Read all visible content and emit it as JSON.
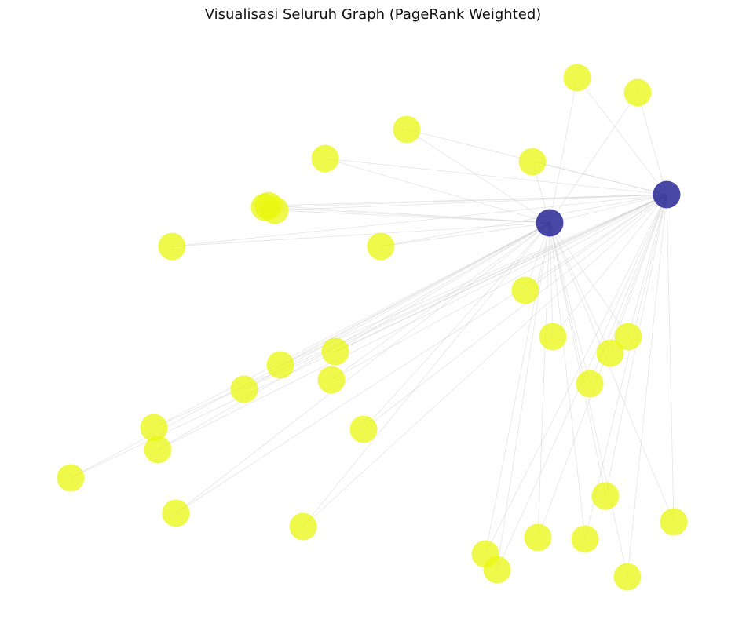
{
  "title": "Visualisasi Seluruh Graph (PageRank Weighted)",
  "colors": {
    "hub_node": "#0d0b88",
    "leaf_node": "#eaf70f",
    "edge": "#cccccc",
    "background": "#ffffff"
  },
  "graph": {
    "nodes": [
      {
        "id": "hubA",
        "role": "hub"
      },
      {
        "id": "hubB",
        "role": "hub"
      },
      {
        "id": "n1",
        "role": "leaf"
      },
      {
        "id": "n2",
        "role": "leaf"
      },
      {
        "id": "n3",
        "role": "leaf"
      },
      {
        "id": "n4",
        "role": "leaf"
      },
      {
        "id": "n5",
        "role": "leaf"
      },
      {
        "id": "n6",
        "role": "leaf"
      },
      {
        "id": "n7",
        "role": "leaf"
      },
      {
        "id": "n8",
        "role": "leaf"
      },
      {
        "id": "n9",
        "role": "leaf"
      },
      {
        "id": "n10",
        "role": "leaf"
      },
      {
        "id": "n11",
        "role": "leaf"
      },
      {
        "id": "n12",
        "role": "leaf"
      },
      {
        "id": "n13",
        "role": "leaf"
      },
      {
        "id": "n14",
        "role": "leaf"
      },
      {
        "id": "n15",
        "role": "leaf"
      },
      {
        "id": "n16",
        "role": "leaf"
      },
      {
        "id": "n17",
        "role": "leaf"
      },
      {
        "id": "n18",
        "role": "leaf"
      },
      {
        "id": "n19",
        "role": "leaf"
      },
      {
        "id": "n20",
        "role": "leaf"
      },
      {
        "id": "n21",
        "role": "leaf"
      },
      {
        "id": "n22",
        "role": "leaf"
      },
      {
        "id": "n23",
        "role": "leaf"
      },
      {
        "id": "n24",
        "role": "leaf"
      },
      {
        "id": "n25",
        "role": "leaf"
      },
      {
        "id": "n26",
        "role": "leaf"
      },
      {
        "id": "n27",
        "role": "leaf"
      },
      {
        "id": "n28",
        "role": "leaf"
      },
      {
        "id": "n29",
        "role": "leaf"
      },
      {
        "id": "n30",
        "role": "leaf"
      },
      {
        "id": "n31",
        "role": "leaf"
      },
      {
        "id": "n32",
        "role": "leaf"
      }
    ],
    "edges": [
      [
        "hubA",
        "n1"
      ],
      [
        "hubA",
        "n2"
      ],
      [
        "hubA",
        "n3"
      ],
      [
        "hubA",
        "n4"
      ],
      [
        "hubA",
        "n5"
      ],
      [
        "hubA",
        "n6"
      ],
      [
        "hubA",
        "n7"
      ],
      [
        "hubA",
        "n8"
      ],
      [
        "hubA",
        "n9"
      ],
      [
        "hubA",
        "n10"
      ],
      [
        "hubA",
        "n11"
      ],
      [
        "hubA",
        "n12"
      ],
      [
        "hubA",
        "n13"
      ],
      [
        "hubA",
        "n14"
      ],
      [
        "hubA",
        "n15"
      ],
      [
        "hubA",
        "n16"
      ],
      [
        "hubA",
        "n17"
      ],
      [
        "hubA",
        "n18"
      ],
      [
        "hubA",
        "n19"
      ],
      [
        "hubA",
        "n20"
      ],
      [
        "hubA",
        "n21"
      ],
      [
        "hubA",
        "n22"
      ],
      [
        "hubA",
        "n23"
      ],
      [
        "hubA",
        "n24"
      ],
      [
        "hubA",
        "n25"
      ],
      [
        "hubA",
        "n26"
      ],
      [
        "hubA",
        "n27"
      ],
      [
        "hubA",
        "n28"
      ],
      [
        "hubA",
        "n29"
      ],
      [
        "hubA",
        "n30"
      ],
      [
        "hubA",
        "n31"
      ],
      [
        "hubA",
        "n32"
      ],
      [
        "hubB",
        "n1"
      ],
      [
        "hubB",
        "n2"
      ],
      [
        "hubB",
        "n3"
      ],
      [
        "hubB",
        "n4"
      ],
      [
        "hubB",
        "n5"
      ],
      [
        "hubB",
        "n6"
      ],
      [
        "hubB",
        "n7"
      ],
      [
        "hubB",
        "n8"
      ],
      [
        "hubB",
        "n9"
      ],
      [
        "hubB",
        "n10"
      ],
      [
        "hubB",
        "n11"
      ],
      [
        "hubB",
        "n12"
      ],
      [
        "hubB",
        "n13"
      ],
      [
        "hubB",
        "n14"
      ],
      [
        "hubB",
        "n15"
      ],
      [
        "hubB",
        "n16"
      ],
      [
        "hubB",
        "n17"
      ],
      [
        "hubB",
        "n18"
      ],
      [
        "hubB",
        "n19"
      ],
      [
        "hubB",
        "n20"
      ],
      [
        "hubB",
        "n21"
      ],
      [
        "hubB",
        "n22"
      ],
      [
        "hubB",
        "n23"
      ],
      [
        "hubB",
        "n24"
      ],
      [
        "hubB",
        "n25"
      ],
      [
        "hubB",
        "n26"
      ],
      [
        "hubB",
        "n27"
      ],
      [
        "hubB",
        "n28"
      ],
      [
        "hubB",
        "n29"
      ],
      [
        "hubB",
        "n30"
      ],
      [
        "hubB",
        "n31"
      ],
      [
        "hubB",
        "n32"
      ],
      [
        "hubA",
        "hubB"
      ]
    ]
  }
}
